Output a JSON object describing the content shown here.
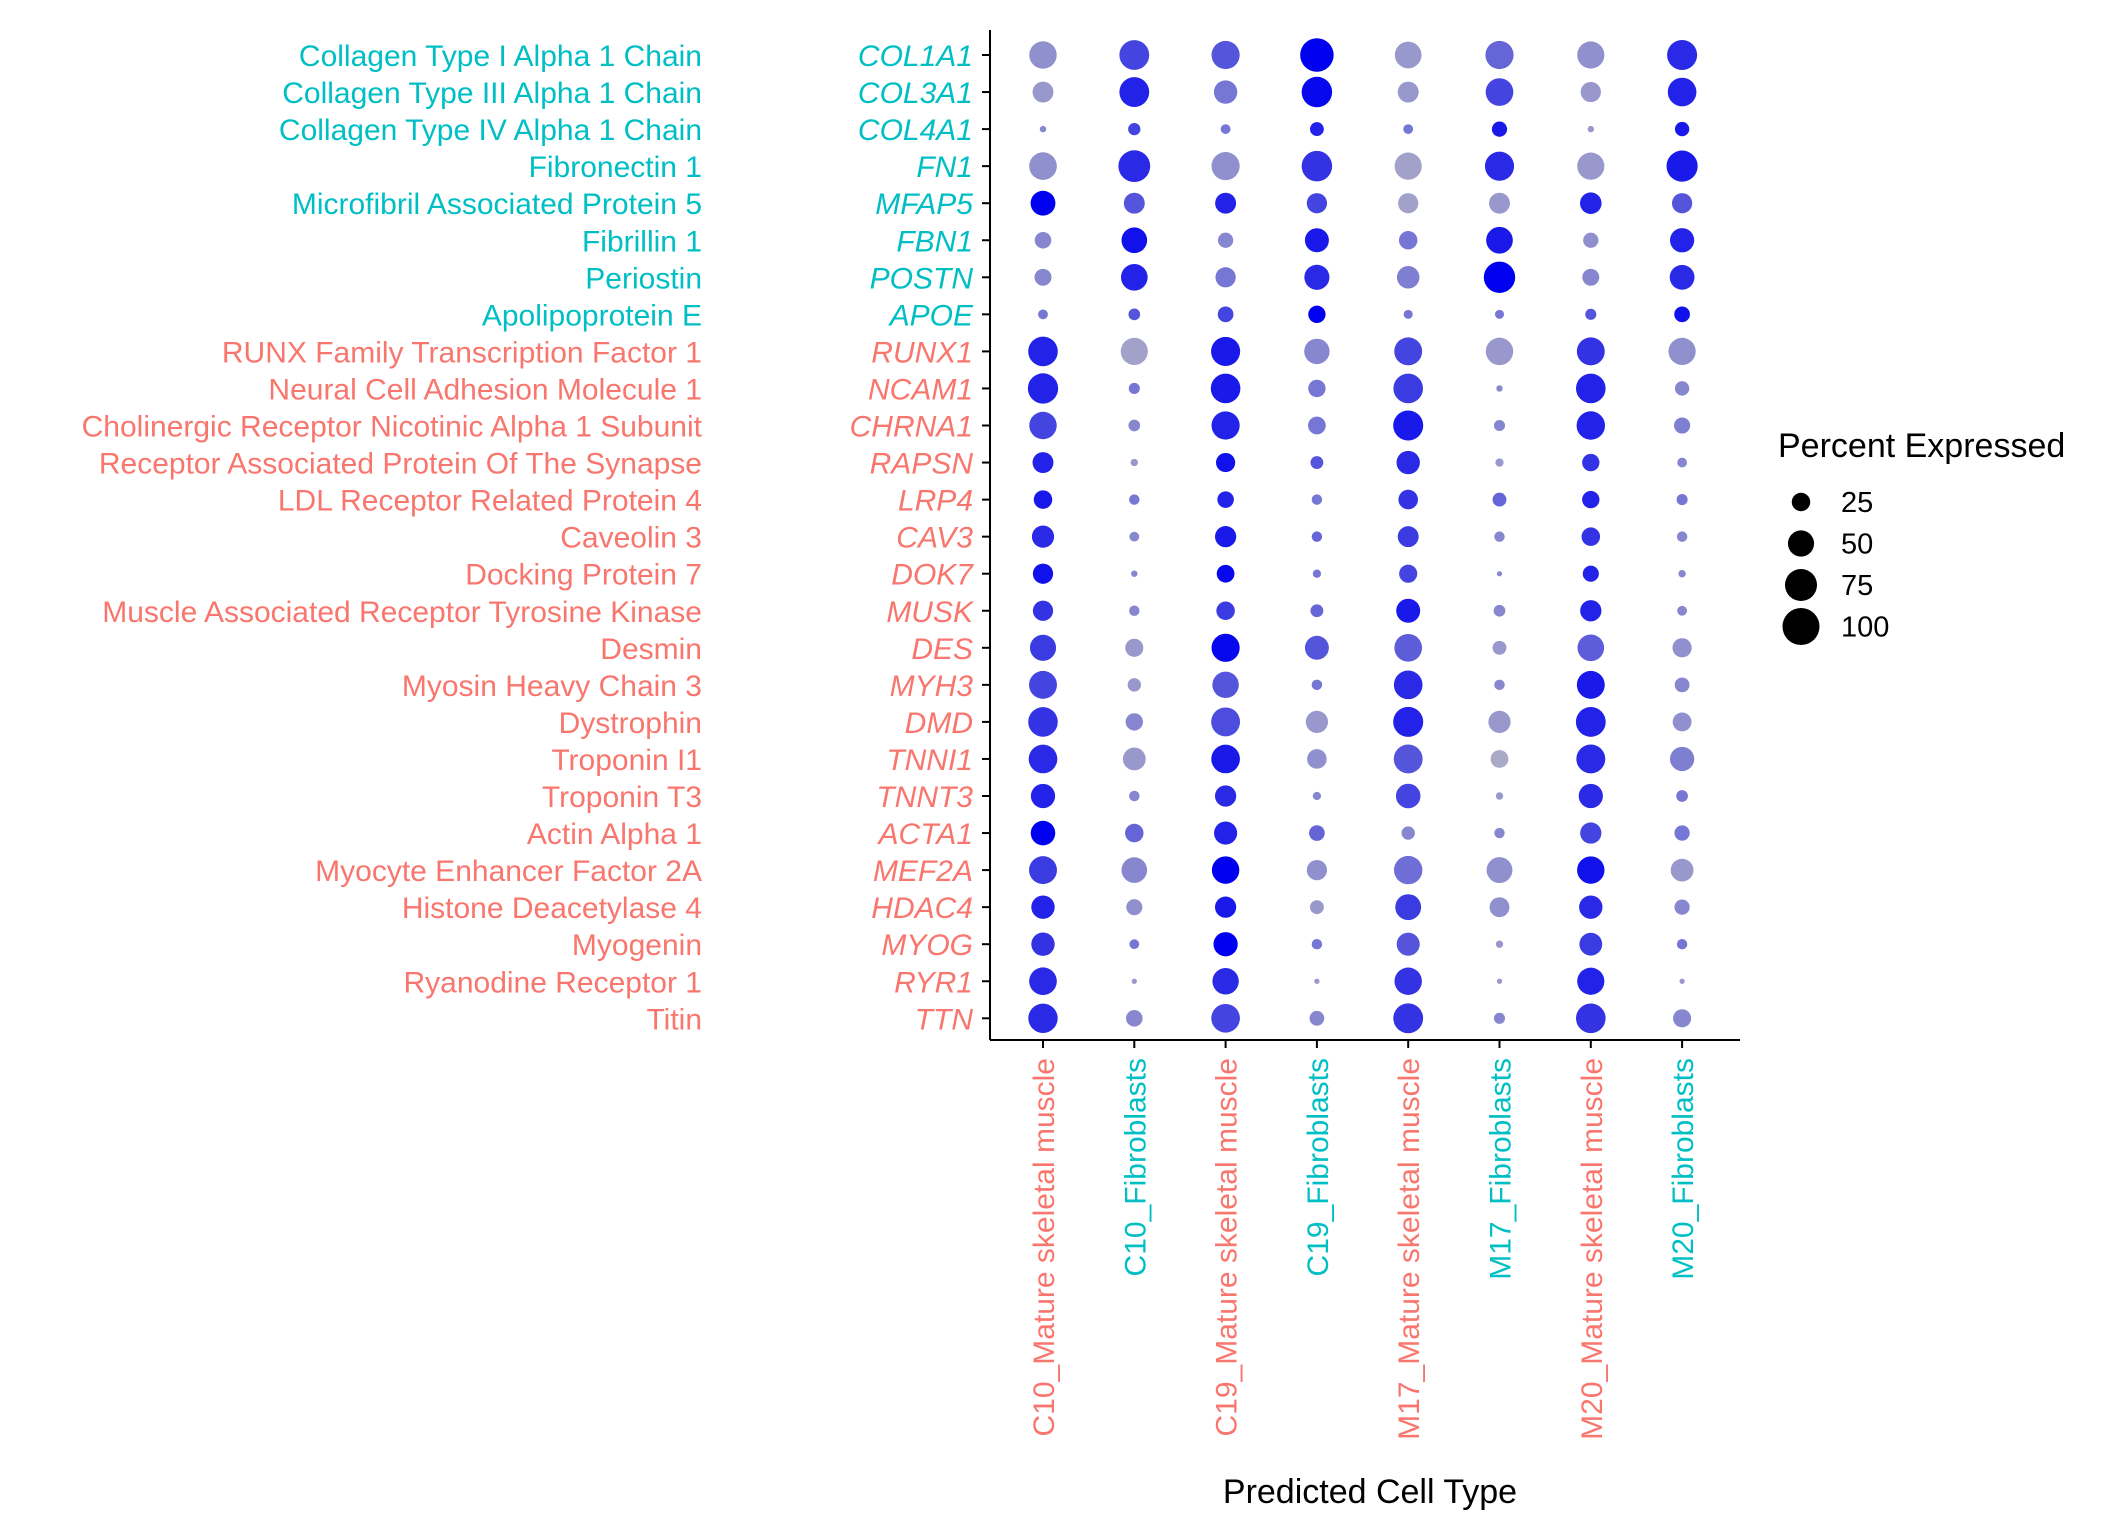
{
  "chart_data": {
    "type": "dot",
    "xlabel": "Predicted Cell Type",
    "legend": {
      "title": "Percent Expressed",
      "sizes": [
        25,
        50,
        75,
        100
      ],
      "labels": [
        "25",
        "50",
        "75",
        "100"
      ],
      "placement": "right"
    },
    "colors": {
      "fibroblast_label": "#00BFC4",
      "muscle_label": "#F8766D",
      "low_expression": "#A9A9C8",
      "high_expression": "#0000F0",
      "axis": "#000000"
    },
    "cell_types": [
      {
        "label": "C10_Mature skeletal muscle",
        "group": "muscle"
      },
      {
        "label": "C10_Fibroblasts",
        "group": "fibroblast"
      },
      {
        "label": "C19_Mature skeletal muscle",
        "group": "muscle"
      },
      {
        "label": "C19_Fibroblasts",
        "group": "fibroblast"
      },
      {
        "label": "M17_Mature skeletal muscle",
        "group": "muscle"
      },
      {
        "label": "M17_Fibroblasts",
        "group": "fibroblast"
      },
      {
        "label": "M20_Mature skeletal muscle",
        "group": "muscle"
      },
      {
        "label": "M20_Fibroblasts",
        "group": "fibroblast"
      }
    ],
    "genes": [
      {
        "symbol": "COL1A1",
        "name": "Collagen Type I Alpha 1 Chain",
        "group": "fibroblast",
        "pct": [
          55,
          65,
          58,
          82,
          52,
          58,
          54,
          66
        ],
        "expr": [
          0.15,
          0.6,
          0.5,
          1.0,
          0.1,
          0.4,
          0.15,
          0.75
        ]
      },
      {
        "symbol": "COL3A1",
        "name": "Collagen Type III Alpha 1 Chain",
        "group": "fibroblast",
        "pct": [
          32,
          65,
          40,
          68,
          32,
          56,
          30,
          60
        ],
        "expr": [
          0.1,
          0.8,
          0.3,
          0.95,
          0.1,
          0.6,
          0.1,
          0.8
        ]
      },
      {
        "symbol": "COL4A1",
        "name": "Collagen Type IV Alpha 1 Chain",
        "group": "fibroblast",
        "pct": [
          3,
          11,
          7,
          14,
          7,
          17,
          3,
          15
        ],
        "expr": [
          0.2,
          0.6,
          0.3,
          0.8,
          0.3,
          0.85,
          0.1,
          0.85
        ]
      },
      {
        "symbol": "FN1",
        "name": "Fibronectin 1",
        "group": "fibroblast",
        "pct": [
          56,
          74,
          58,
          68,
          54,
          62,
          54,
          71
        ],
        "expr": [
          0.15,
          0.75,
          0.15,
          0.7,
          0.05,
          0.75,
          0.1,
          0.85
        ]
      },
      {
        "symbol": "MFAP5",
        "name": "Microfibril Associated Protein 5",
        "group": "fibroblast",
        "pct": [
          45,
          32,
          32,
          30,
          30,
          32,
          34,
          30
        ],
        "expr": [
          1.0,
          0.5,
          0.8,
          0.6,
          0.05,
          0.1,
          0.8,
          0.5
        ]
      },
      {
        "symbol": "FBN1",
        "name": "Fibrillin 1",
        "group": "fibroblast",
        "pct": [
          20,
          48,
          17,
          42,
          25,
          52,
          17,
          43
        ],
        "expr": [
          0.2,
          0.9,
          0.2,
          0.85,
          0.3,
          0.85,
          0.15,
          0.8
        ]
      },
      {
        "symbol": "POSTN",
        "name": "Periostin",
        "group": "fibroblast",
        "pct": [
          21,
          52,
          30,
          46,
          37,
          72,
          21,
          45
        ],
        "expr": [
          0.2,
          0.8,
          0.3,
          0.75,
          0.25,
          1.0,
          0.2,
          0.75
        ]
      },
      {
        "symbol": "APOE",
        "name": "Apolipoprotein E",
        "group": "fibroblast",
        "pct": [
          7,
          10,
          18,
          22,
          6,
          6,
          9,
          18
        ],
        "expr": [
          0.3,
          0.5,
          0.6,
          1.0,
          0.3,
          0.3,
          0.5,
          0.9
        ]
      },
      {
        "symbol": "RUNX1",
        "name": "RUNX Family Transcription Factor 1",
        "group": "muscle",
        "pct": [
          64,
          54,
          62,
          47,
          57,
          55,
          57,
          54
        ],
        "expr": [
          0.8,
          0.05,
          0.85,
          0.2,
          0.6,
          0.1,
          0.7,
          0.15
        ]
      },
      {
        "symbol": "NCAM1",
        "name": "Neural Cell Adhesion Molecule 1",
        "group": "muscle",
        "pct": [
          67,
          9,
          64,
          22,
          64,
          3,
          64,
          15
        ],
        "expr": [
          0.8,
          0.3,
          0.85,
          0.3,
          0.65,
          0.2,
          0.8,
          0.2
        ]
      },
      {
        "symbol": "CHRNA1",
        "name": "Cholinergic Receptor Nicotinic Alpha 1 Subunit",
        "group": "muscle",
        "pct": [
          55,
          10,
          58,
          23,
          66,
          9,
          59,
          19
        ],
        "expr": [
          0.6,
          0.2,
          0.8,
          0.3,
          0.85,
          0.2,
          0.8,
          0.25
        ]
      },
      {
        "symbol": "RAPSN",
        "name": "Receptor Associated Protein Of The Synapse",
        "group": "muscle",
        "pct": [
          32,
          4,
          27,
          12,
          40,
          5,
          22,
          7
        ],
        "expr": [
          0.8,
          0.1,
          0.9,
          0.5,
          0.75,
          0.1,
          0.7,
          0.2
        ]
      },
      {
        "symbol": "LRP4",
        "name": "LDL Receptor Related Protein 4",
        "group": "muscle",
        "pct": [
          25,
          8,
          20,
          8,
          28,
          14,
          22,
          9
        ],
        "expr": [
          0.85,
          0.3,
          0.8,
          0.3,
          0.7,
          0.4,
          0.8,
          0.3
        ]
      },
      {
        "symbol": "CAV3",
        "name": "Caveolin 3",
        "group": "muscle",
        "pct": [
          36,
          7,
          33,
          8,
          32,
          8,
          25,
          8
        ],
        "expr": [
          0.75,
          0.2,
          0.85,
          0.4,
          0.65,
          0.2,
          0.7,
          0.2
        ]
      },
      {
        "symbol": "DOK7",
        "name": "Docking Protein 7",
        "group": "muscle",
        "pct": [
          30,
          3,
          23,
          5,
          24,
          2,
          19,
          4
        ],
        "expr": [
          0.9,
          0.2,
          0.95,
          0.3,
          0.6,
          0.2,
          0.8,
          0.2
        ]
      },
      {
        "symbol": "MUSK",
        "name": "Muscle Associated Receptor Tyrosine Kinase",
        "group": "muscle",
        "pct": [
          30,
          8,
          25,
          12,
          42,
          10,
          33,
          7
        ],
        "expr": [
          0.7,
          0.2,
          0.65,
          0.4,
          0.85,
          0.2,
          0.8,
          0.2
        ]
      },
      {
        "symbol": "DES",
        "name": "Desmin",
        "group": "muscle",
        "pct": [
          50,
          24,
          58,
          42,
          56,
          14,
          52,
          27
        ],
        "expr": [
          0.65,
          0.1,
          0.95,
          0.5,
          0.45,
          0.1,
          0.45,
          0.15
        ]
      },
      {
        "symbol": "MYH3",
        "name": "Myosin Heavy Chain 3",
        "group": "muscle",
        "pct": [
          57,
          13,
          51,
          8,
          60,
          8,
          57,
          16
        ],
        "expr": [
          0.6,
          0.1,
          0.5,
          0.3,
          0.75,
          0.2,
          0.85,
          0.2
        ]
      },
      {
        "symbol": "DMD",
        "name": "Dystrophin",
        "group": "muscle",
        "pct": [
          64,
          22,
          61,
          36,
          66,
          36,
          65,
          26
        ],
        "expr": [
          0.7,
          0.2,
          0.55,
          0.1,
          0.8,
          0.1,
          0.8,
          0.15
        ]
      },
      {
        "symbol": "TNNI1",
        "name": "Troponin I1",
        "group": "muscle",
        "pct": [
          60,
          38,
          60,
          28,
          61,
          23,
          61,
          43
        ],
        "expr": [
          0.75,
          0.1,
          0.85,
          0.15,
          0.5,
          0.0,
          0.75,
          0.25
        ]
      },
      {
        "symbol": "TNNT3",
        "name": "Troponin T3",
        "group": "muscle",
        "pct": [
          43,
          8,
          33,
          5,
          44,
          4,
          43,
          10
        ],
        "expr": [
          0.8,
          0.2,
          0.75,
          0.2,
          0.6,
          0.1,
          0.75,
          0.3
        ]
      },
      {
        "symbol": "ACTA1",
        "name": "Actin Alpha 1",
        "group": "muscle",
        "pct": [
          44,
          25,
          39,
          18,
          13,
          8,
          33,
          17
        ],
        "expr": [
          1.0,
          0.4,
          0.8,
          0.4,
          0.2,
          0.2,
          0.6,
          0.3
        ]
      },
      {
        "symbol": "MEF2A",
        "name": "Myocyte Enhancer Factor 2A",
        "group": "muscle",
        "pct": [
          57,
          48,
          55,
          30,
          59,
          49,
          55,
          38
        ],
        "expr": [
          0.65,
          0.2,
          1.0,
          0.15,
          0.35,
          0.15,
          0.9,
          0.1
        ]
      },
      {
        "symbol": "HDAC4",
        "name": "Histone Deacetylase 4",
        "group": "muscle",
        "pct": [
          40,
          19,
          33,
          14,
          49,
          29,
          40,
          17
        ],
        "expr": [
          0.8,
          0.15,
          0.85,
          0.1,
          0.65,
          0.15,
          0.75,
          0.2
        ]
      },
      {
        "symbol": "MYOG",
        "name": "Myogenin",
        "group": "muscle",
        "pct": [
          40,
          7,
          43,
          8,
          39,
          4,
          38,
          8
        ],
        "expr": [
          0.7,
          0.3,
          1.0,
          0.3,
          0.5,
          0.1,
          0.65,
          0.3
        ]
      },
      {
        "symbol": "RYR1",
        "name": "Ryanodine Receptor 1",
        "group": "muscle",
        "pct": [
          56,
          2,
          51,
          2,
          55,
          2,
          54,
          2
        ],
        "expr": [
          0.75,
          0.1,
          0.75,
          0.1,
          0.7,
          0.1,
          0.8,
          0.1
        ]
      },
      {
        "symbol": "TTN",
        "name": "Titin",
        "group": "muscle",
        "pct": [
          63,
          20,
          60,
          16,
          65,
          9,
          64,
          24
        ],
        "expr": [
          0.75,
          0.2,
          0.6,
          0.2,
          0.7,
          0.2,
          0.7,
          0.2
        ]
      }
    ]
  }
}
